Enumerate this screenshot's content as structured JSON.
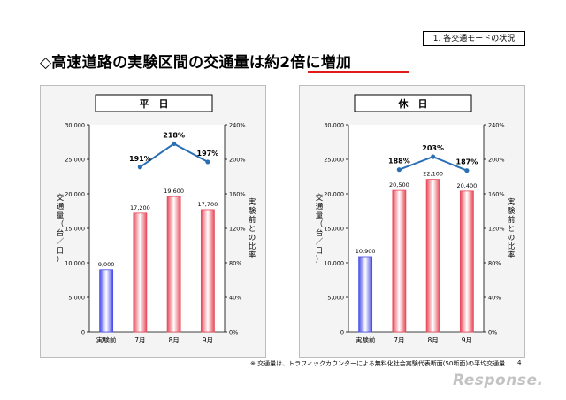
{
  "section_tag": "1. 各交通モードの状況",
  "title_prefix": "◇高速道路の実験区間の交通量は",
  "title_emphasis": "約2倍に増加",
  "footnote": "※ 交通量は、トラフィックカウンターによる無料化社会実験代表断面(50断面)の平均交通量",
  "page_number": "4",
  "watermark": "Response.",
  "chart_data": [
    {
      "type": "bar",
      "title": "平　日",
      "categories": [
        "実験前",
        "7月",
        "8月",
        "9月"
      ],
      "values": [
        9000,
        17200,
        19600,
        17700
      ],
      "value_labels": [
        "9,000",
        "17,200",
        "19,600",
        "17,700"
      ],
      "ylabel": "交通量（台／日）",
      "ylim": [
        0,
        30000
      ],
      "yticks": [
        "0",
        "5,000",
        "10,000",
        "15,000",
        "20,000",
        "25,000",
        "30,000"
      ],
      "y2label": "実験前との比率",
      "y2lim": [
        0,
        240
      ],
      "y2ticks": [
        "0%",
        "40%",
        "80%",
        "120%",
        "160%",
        "200%",
        "240%"
      ],
      "ratio": {
        "categories": [
          "7月",
          "8月",
          "9月"
        ],
        "values": [
          191,
          218,
          197
        ],
        "labels": [
          "191%",
          "218%",
          "197%"
        ]
      },
      "colors": {
        "before": "#4a4ee8",
        "after": "#e84a5a",
        "line": "#2a6fb5"
      }
    },
    {
      "type": "bar",
      "title": "休　日",
      "categories": [
        "実験前",
        "7月",
        "8月",
        "9月"
      ],
      "values": [
        10900,
        20500,
        22100,
        20400
      ],
      "value_labels": [
        "10,900",
        "20,500",
        "22,100",
        "20,400"
      ],
      "ylabel": "交通量（台／日）",
      "ylim": [
        0,
        30000
      ],
      "yticks": [
        "0",
        "5,000",
        "10,000",
        "15,000",
        "20,000",
        "25,000",
        "30,000"
      ],
      "y2label": "実験前との比率",
      "y2lim": [
        0,
        240
      ],
      "y2ticks": [
        "0%",
        "40%",
        "80%",
        "120%",
        "160%",
        "200%",
        "240%"
      ],
      "ratio": {
        "categories": [
          "7月",
          "8月",
          "9月"
        ],
        "values": [
          188,
          203,
          187
        ],
        "labels": [
          "188%",
          "203%",
          "187%"
        ]
      },
      "colors": {
        "before": "#4a4ee8",
        "after": "#e84a5a",
        "line": "#2a6fb5"
      }
    }
  ]
}
